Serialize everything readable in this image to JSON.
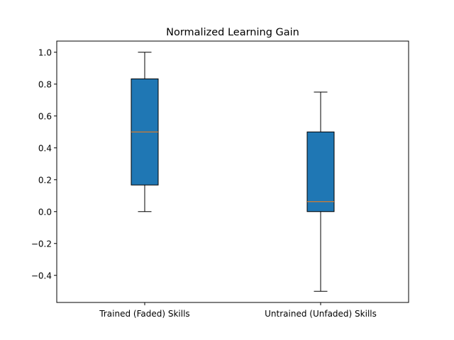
{
  "chart_data": {
    "type": "box",
    "title": "Normalized Learning Gain",
    "xlabel": "",
    "ylabel": "",
    "ylim": [
      -0.57,
      1.07
    ],
    "yticks": [
      1.0,
      0.8,
      0.6,
      0.4,
      0.2,
      0.0,
      -0.2,
      -0.4
    ],
    "ytick_labels": [
      "1.0",
      "0.8",
      "0.6",
      "0.4",
      "0.2",
      "0.0",
      "−0.2",
      "−0.4"
    ],
    "categories": [
      "Trained (Faded) Skills",
      "Untrained (Unfaded) Skills"
    ],
    "boxes": [
      {
        "whisker_low": 0.0,
        "q1": 0.167,
        "median": 0.5,
        "q3": 0.833,
        "whisker_high": 1.0
      },
      {
        "whisker_low": -0.5,
        "q1": 0.0,
        "median": 0.0625,
        "q3": 0.5,
        "whisker_high": 0.75
      }
    ],
    "colors": {
      "box_fill": "#1f77b4",
      "median": "#ff7f0e",
      "line": "#000000"
    }
  }
}
